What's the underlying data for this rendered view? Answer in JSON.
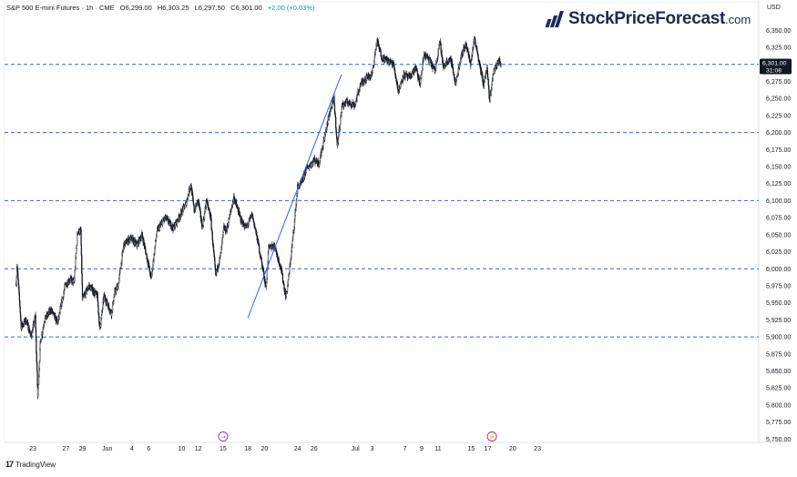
{
  "header": {
    "symbol": "S&P 500 E-mini Futures · 1h · CME",
    "open": "O6,299.00",
    "high": "H6,303.25",
    "low": "L6,297.50",
    "close": "C6,301.00",
    "change": "+2.00 (+0.03%)"
  },
  "logo": {
    "brand": "StockPriceForecast",
    "tld": ".com"
  },
  "currency_label": "USD",
  "footer": {
    "brand": "TradingView",
    "icon": "tradingview-logo-icon"
  },
  "colors": {
    "candles": "#131722",
    "trendline": "#2962ff",
    "hlines": "#2962ff",
    "price_label_bg": "#131722",
    "event_marker": "#9c27b0",
    "axis_text": "#131722",
    "gridline": "#f0f3fa"
  },
  "chart_data": {
    "type": "candlestick",
    "title": "S&P 500 E-mini Futures · 1h · CME",
    "ylabel": "USD",
    "ylim": [
      5740,
      6370
    ],
    "y_ticks": [
      "6,350.00",
      "6,325.00",
      "6,300.00",
      "6,275.00",
      "6,250.00",
      "6,225.00",
      "6,200.00",
      "6,175.00",
      "6,150.00",
      "6,125.00",
      "6,100.00",
      "6,075.00",
      "6,050.00",
      "6,025.00",
      "6,000.00",
      "5,975.00",
      "5,950.00",
      "5,925.00",
      "5,900.00",
      "5,875.00",
      "5,850.00",
      "5,825.00",
      "5,800.00",
      "5,775.00",
      "5,750.00"
    ],
    "x_ticks": [
      {
        "label": "23",
        "day": 0
      },
      {
        "label": "27",
        "day": 4
      },
      {
        "label": "29",
        "day": 6
      },
      {
        "label": "Jun",
        "day": 9
      },
      {
        "label": "4",
        "day": 12
      },
      {
        "label": "6",
        "day": 14
      },
      {
        "label": "10",
        "day": 18
      },
      {
        "label": "12",
        "day": 20
      },
      {
        "label": "15",
        "day": 23
      },
      {
        "label": "18",
        "day": 26
      },
      {
        "label": "20",
        "day": 28
      },
      {
        "label": "24",
        "day": 32
      },
      {
        "label": "26",
        "day": 34
      },
      {
        "label": "Jul",
        "day": 39
      },
      {
        "label": "3",
        "day": 41
      },
      {
        "label": "7",
        "day": 45
      },
      {
        "label": "9",
        "day": 47
      },
      {
        "label": "11",
        "day": 49
      },
      {
        "label": "15",
        "day": 53
      },
      {
        "label": "17",
        "day": 55
      },
      {
        "label": "20",
        "day": 58
      },
      {
        "label": "23",
        "day": 61
      }
    ],
    "xlim_days": [
      -2.05,
      62.4
    ],
    "horizontal_levels": [
      6300,
      6200,
      6100,
      6000,
      5900
    ],
    "trendline": {
      "start": {
        "day": 26.0,
        "price": 5928
      },
      "end": {
        "day": 37.3,
        "price": 6285
      }
    },
    "last_price": {
      "value": "6,301.00",
      "countdown": "31:08",
      "price": 6301
    },
    "event_markers": [
      {
        "day": 23.0,
        "symbol": "⇢"
      },
      {
        "day": 55.5,
        "symbol": "⚡"
      }
    ],
    "anchors": [
      {
        "day": -2.0,
        "p": 5980
      },
      {
        "day": -1.9,
        "p": 6005
      },
      {
        "day": -1.4,
        "p": 5915
      },
      {
        "day": -0.8,
        "p": 5925
      },
      {
        "day": -0.2,
        "p": 5900
      },
      {
        "day": 0.3,
        "p": 5930
      },
      {
        "day": 0.6,
        "p": 5812
      },
      {
        "day": 0.9,
        "p": 5890
      },
      {
        "day": 1.4,
        "p": 5925
      },
      {
        "day": 2.2,
        "p": 5940
      },
      {
        "day": 3.0,
        "p": 5920
      },
      {
        "day": 3.9,
        "p": 5975
      },
      {
        "day": 4.5,
        "p": 5985
      },
      {
        "day": 5.0,
        "p": 5980
      },
      {
        "day": 5.4,
        "p": 6055
      },
      {
        "day": 5.8,
        "p": 6055
      },
      {
        "day": 6.0,
        "p": 5955
      },
      {
        "day": 6.8,
        "p": 5975
      },
      {
        "day": 7.8,
        "p": 5960
      },
      {
        "day": 8.1,
        "p": 5910
      },
      {
        "day": 8.6,
        "p": 5960
      },
      {
        "day": 9.5,
        "p": 5935
      },
      {
        "day": 9.9,
        "p": 5965
      },
      {
        "day": 10.3,
        "p": 5975
      },
      {
        "day": 11.0,
        "p": 6035
      },
      {
        "day": 11.8,
        "p": 6045
      },
      {
        "day": 12.6,
        "p": 6035
      },
      {
        "day": 13.2,
        "p": 6050
      },
      {
        "day": 14.0,
        "p": 6005
      },
      {
        "day": 14.3,
        "p": 5985
      },
      {
        "day": 15.0,
        "p": 6055
      },
      {
        "day": 16.0,
        "p": 6075
      },
      {
        "day": 17.0,
        "p": 6060
      },
      {
        "day": 18.5,
        "p": 6095
      },
      {
        "day": 19.1,
        "p": 6125
      },
      {
        "day": 19.5,
        "p": 6085
      },
      {
        "day": 20.0,
        "p": 6100
      },
      {
        "day": 20.5,
        "p": 6060
      },
      {
        "day": 21.0,
        "p": 6100
      },
      {
        "day": 21.5,
        "p": 6075
      },
      {
        "day": 22.1,
        "p": 5990
      },
      {
        "day": 22.7,
        "p": 6020
      },
      {
        "day": 23.1,
        "p": 6060
      },
      {
        "day": 23.4,
        "p": 6055
      },
      {
        "day": 24.3,
        "p": 6105
      },
      {
        "day": 25.2,
        "p": 6070
      },
      {
        "day": 25.8,
        "p": 6060
      },
      {
        "day": 26.5,
        "p": 6080
      },
      {
        "day": 27.2,
        "p": 6040
      },
      {
        "day": 27.8,
        "p": 6000
      },
      {
        "day": 28.2,
        "p": 5972
      },
      {
        "day": 28.5,
        "p": 6030
      },
      {
        "day": 29.2,
        "p": 6035
      },
      {
        "day": 30.0,
        "p": 6000
      },
      {
        "day": 30.6,
        "p": 5958
      },
      {
        "day": 31.0,
        "p": 5995
      },
      {
        "day": 31.6,
        "p": 6065
      },
      {
        "day": 32.0,
        "p": 6120
      },
      {
        "day": 32.5,
        "p": 6125
      },
      {
        "day": 33.0,
        "p": 6145
      },
      {
        "day": 34.0,
        "p": 6160
      },
      {
        "day": 34.6,
        "p": 6155
      },
      {
        "day": 35.3,
        "p": 6195
      },
      {
        "day": 35.9,
        "p": 6230
      },
      {
        "day": 36.4,
        "p": 6250
      },
      {
        "day": 36.8,
        "p": 6180
      },
      {
        "day": 37.4,
        "p": 6240
      },
      {
        "day": 38.0,
        "p": 6245
      },
      {
        "day": 38.9,
        "p": 6240
      },
      {
        "day": 39.6,
        "p": 6270
      },
      {
        "day": 40.2,
        "p": 6280
      },
      {
        "day": 41.0,
        "p": 6285
      },
      {
        "day": 41.6,
        "p": 6335
      },
      {
        "day": 42.2,
        "p": 6310
      },
      {
        "day": 43.0,
        "p": 6305
      },
      {
        "day": 43.6,
        "p": 6300
      },
      {
        "day": 44.2,
        "p": 6260
      },
      {
        "day": 44.8,
        "p": 6285
      },
      {
        "day": 45.5,
        "p": 6280
      },
      {
        "day": 46.3,
        "p": 6295
      },
      {
        "day": 46.8,
        "p": 6270
      },
      {
        "day": 47.3,
        "p": 6315
      },
      {
        "day": 48.0,
        "p": 6305
      },
      {
        "day": 48.6,
        "p": 6290
      },
      {
        "day": 49.2,
        "p": 6335
      },
      {
        "day": 49.6,
        "p": 6295
      },
      {
        "day": 50.1,
        "p": 6305
      },
      {
        "day": 50.6,
        "p": 6305
      },
      {
        "day": 51.1,
        "p": 6270
      },
      {
        "day": 51.8,
        "p": 6315
      },
      {
        "day": 52.4,
        "p": 6330
      },
      {
        "day": 52.9,
        "p": 6300
      },
      {
        "day": 53.4,
        "p": 6340
      },
      {
        "day": 54.0,
        "p": 6300
      },
      {
        "day": 54.5,
        "p": 6270
      },
      {
        "day": 54.9,
        "p": 6295
      },
      {
        "day": 55.2,
        "p": 6245
      },
      {
        "day": 55.7,
        "p": 6290
      },
      {
        "day": 56.3,
        "p": 6305
      },
      {
        "day": 56.6,
        "p": 6301
      }
    ]
  }
}
